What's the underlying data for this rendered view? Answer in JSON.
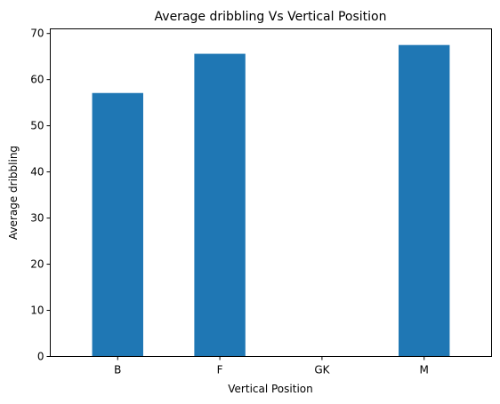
{
  "chart_data": {
    "type": "bar",
    "title": "Average dribbling Vs Vertical Position",
    "xlabel": "Vertical Position",
    "ylabel": "Average dribbling",
    "categories": [
      "B",
      "F",
      "GK",
      "M"
    ],
    "values": [
      57.1,
      65.6,
      0,
      67.5
    ],
    "ylim": [
      0,
      71
    ],
    "yticks": [
      0,
      10,
      20,
      30,
      40,
      50,
      60,
      70
    ],
    "grid": false,
    "bar_color": "#1f77b4"
  }
}
